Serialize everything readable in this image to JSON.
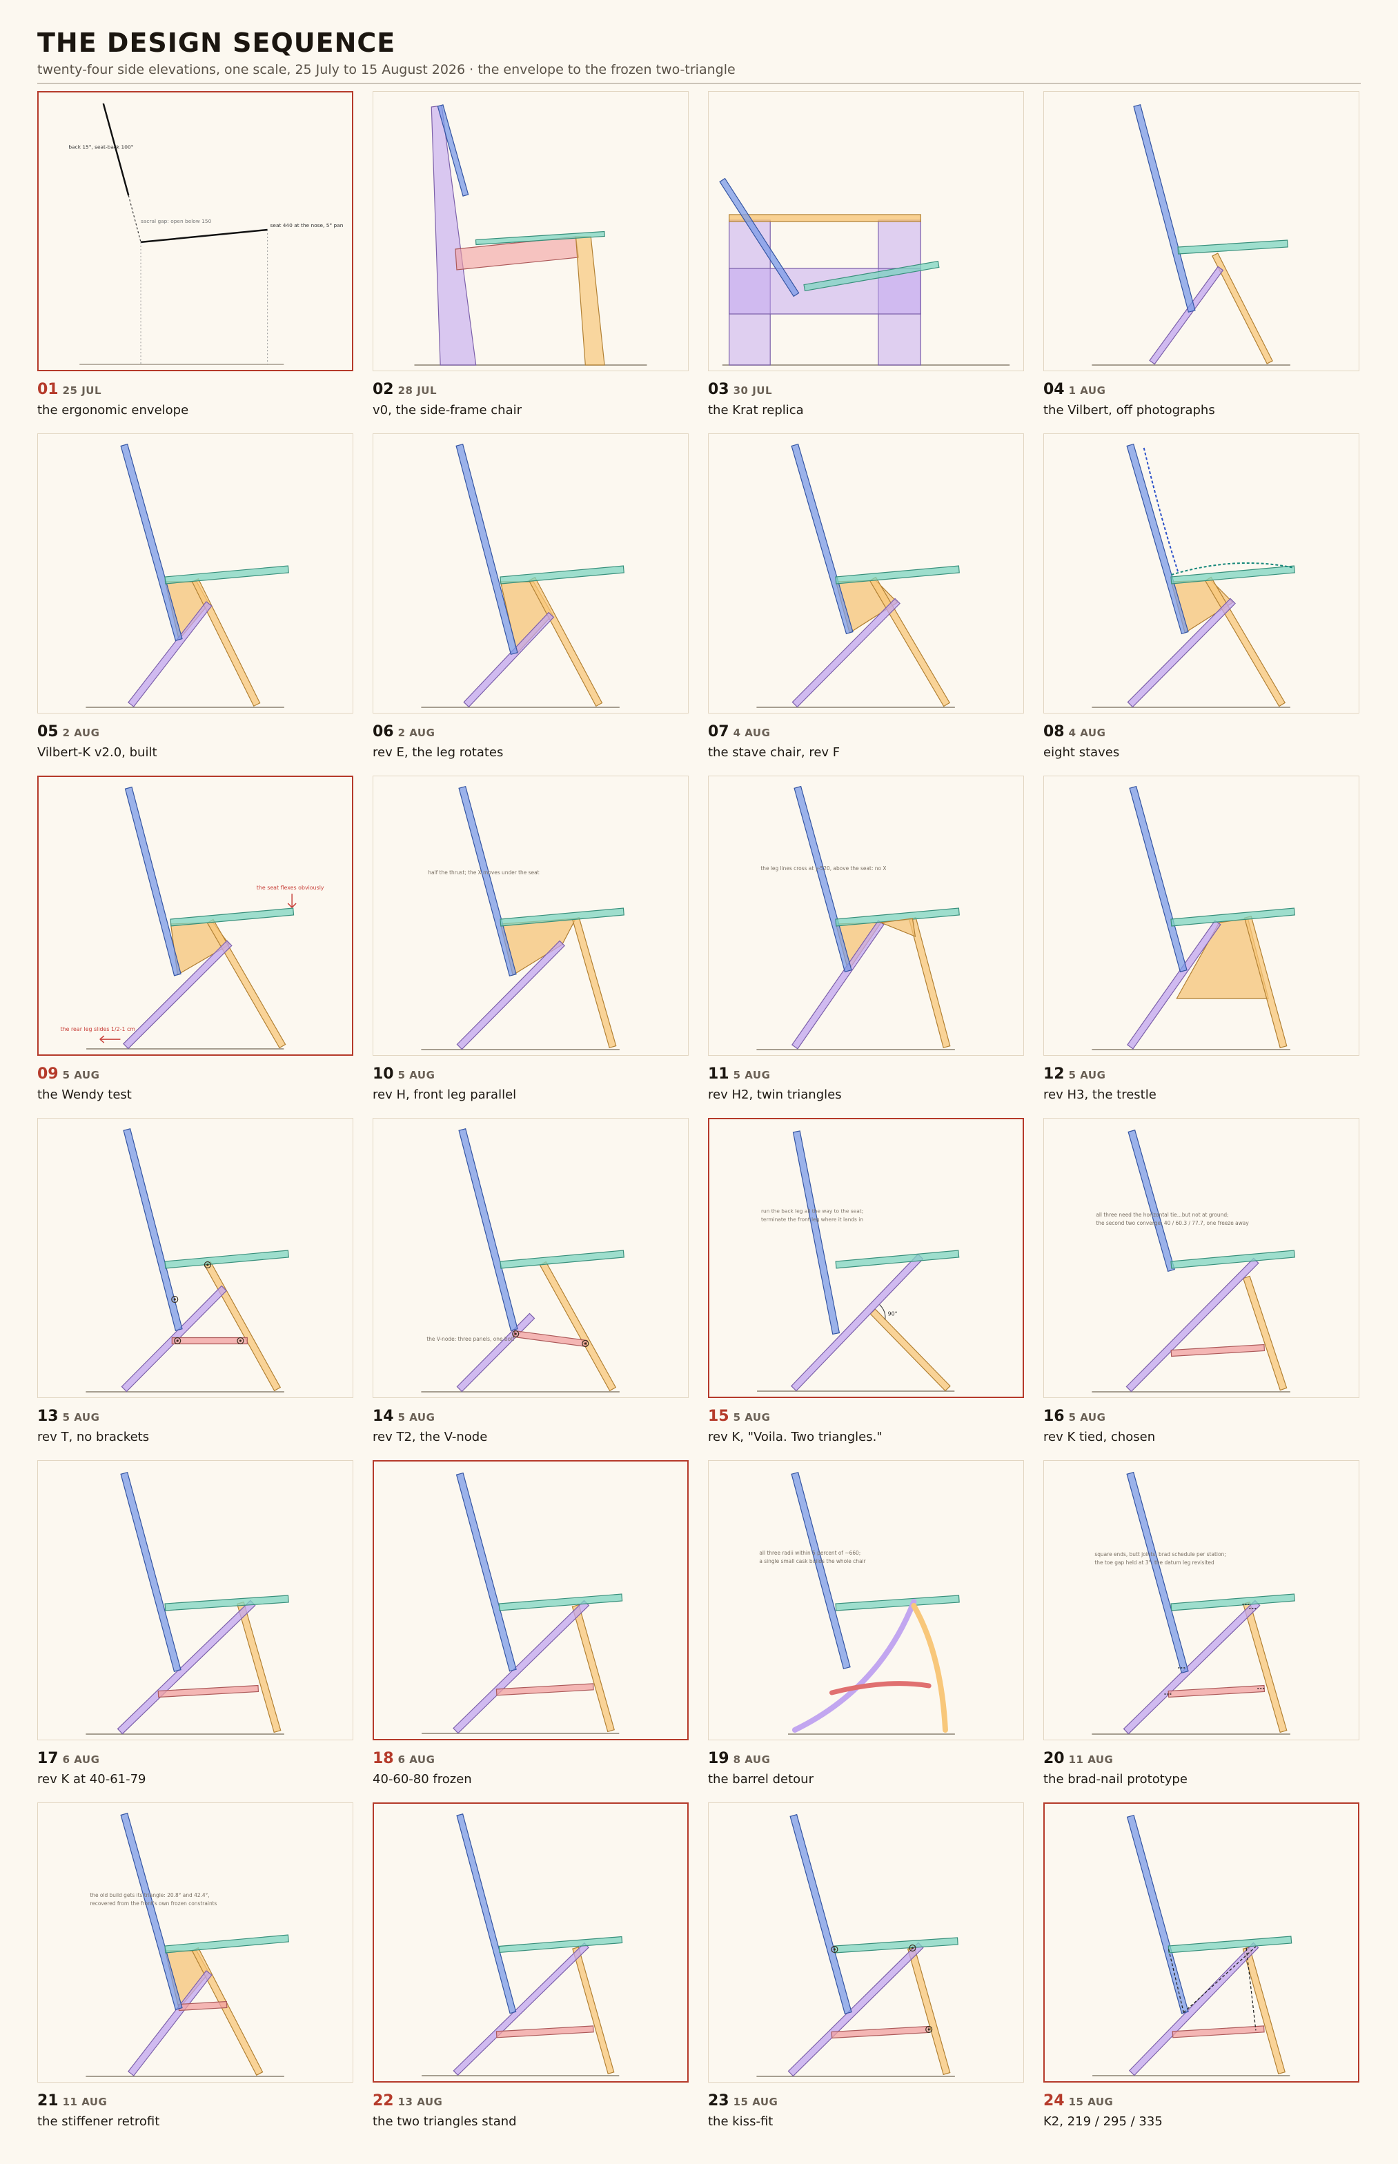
{
  "header": {
    "title": "THE DESIGN SEQUENCE",
    "subtitle": "twenty-four side elevations, one scale, 25 July to 15 August 2026 · the envelope to the frozen two-triangle"
  },
  "colors": {
    "back": "#7b9be8",
    "seat": "#7fd6c2",
    "rear_leg": "#c2a6f0",
    "front_leg": "#f8c77a",
    "stretcher": "#f2a0a0",
    "brace": "#f6c478",
    "highlight": "#b53a2a",
    "ground": "#8a8070"
  },
  "panels": [
    {
      "num": "01",
      "date": "25 JUL",
      "title": "the ergonomic envelope",
      "highlight": true,
      "notes": [
        "back 15°, seat-back 100°",
        "sacral gap: open below 150",
        "seat 440 at the nose, 5° pan"
      ]
    },
    {
      "num": "02",
      "date": "28 JUL",
      "title": "v0, the side-frame chair",
      "highlight": false,
      "notes": []
    },
    {
      "num": "03",
      "date": "30 JUL",
      "title": "the Krat replica",
      "highlight": false,
      "notes": []
    },
    {
      "num": "04",
      "date": "1 AUG",
      "title": "the Vilbert, off photographs",
      "highlight": false,
      "notes": []
    },
    {
      "num": "05",
      "date": "2 AUG",
      "title": "Vilbert-K v2.0, built",
      "highlight": false,
      "notes": []
    },
    {
      "num": "06",
      "date": "2 AUG",
      "title": "rev E, the leg rotates",
      "highlight": false,
      "notes": []
    },
    {
      "num": "07",
      "date": "4 AUG",
      "title": "the stave chair, rev F",
      "highlight": false,
      "notes": []
    },
    {
      "num": "08",
      "date": "4 AUG",
      "title": "eight staves",
      "highlight": false,
      "notes": []
    },
    {
      "num": "09",
      "date": "5 AUG",
      "title": "the Wendy test",
      "highlight": true,
      "notes": [
        "the seat flexes obviously",
        "the rear leg slides 1/2-1 cm"
      ]
    },
    {
      "num": "10",
      "date": "5 AUG",
      "title": "rev H, front leg parallel",
      "highlight": false,
      "notes": [
        "half the thrust; the X moves under the seat"
      ]
    },
    {
      "num": "11",
      "date": "5 AUG",
      "title": "rev H2, twin triangles",
      "highlight": false,
      "notes": [
        "the leg lines cross at y-520, above the seat: no X"
      ]
    },
    {
      "num": "12",
      "date": "5 AUG",
      "title": "rev H3, the trestle",
      "highlight": false,
      "notes": []
    },
    {
      "num": "13",
      "date": "5 AUG",
      "title": "rev T, no brackets",
      "highlight": false,
      "notes": []
    },
    {
      "num": "14",
      "date": "5 AUG",
      "title": "rev T2, the V-node",
      "highlight": false,
      "notes": [
        "the V-node: three panels, one bolt"
      ]
    },
    {
      "num": "15",
      "date": "5 AUG",
      "title": "rev K, \"Voila. Two triangles.\"",
      "highlight": true,
      "notes": [
        "run the back leg all the way to the seat;",
        "terminate the front leg where it lands in",
        "90°"
      ]
    },
    {
      "num": "16",
      "date": "5 AUG",
      "title": "rev K tied, chosen",
      "highlight": false,
      "notes": [
        "all three need the horizontal tie...but not at ground;",
        "the second two converge: 40 / 60.3 / 77.7, one freeze away"
      ]
    },
    {
      "num": "17",
      "date": "6 AUG",
      "title": "rev K at 40-61-79",
      "highlight": false,
      "notes": []
    },
    {
      "num": "18",
      "date": "6 AUG",
      "title": "40-60-80 frozen",
      "highlight": true,
      "notes": []
    },
    {
      "num": "19",
      "date": "8 AUG",
      "title": "the barrel detour",
      "highlight": false,
      "notes": [
        "all three radii within 5 percent of ~660;",
        "a single small cask builds the whole chair"
      ]
    },
    {
      "num": "20",
      "date": "11 AUG",
      "title": "the brad-nail prototype",
      "highlight": false,
      "notes": [
        "square ends, butt joints, brad schedule per station;",
        "the toe gap held at 3°, the datum leg revisited"
      ]
    },
    {
      "num": "21",
      "date": "11 AUG",
      "title": "the stiffener retrofit",
      "highlight": false,
      "notes": [
        "the old build gets its triangle: 20.8° and 42.4°,",
        "recovered from the front's own frozen constraints"
      ]
    },
    {
      "num": "22",
      "date": "13 AUG",
      "title": "the two triangles stand",
      "highlight": true,
      "notes": []
    },
    {
      "num": "23",
      "date": "15 AUG",
      "title": "the kiss-fit",
      "highlight": false,
      "notes": []
    },
    {
      "num": "24",
      "date": "15 AUG",
      "title": "K2, 219 / 295 / 335",
      "highlight": true,
      "notes": []
    }
  ]
}
